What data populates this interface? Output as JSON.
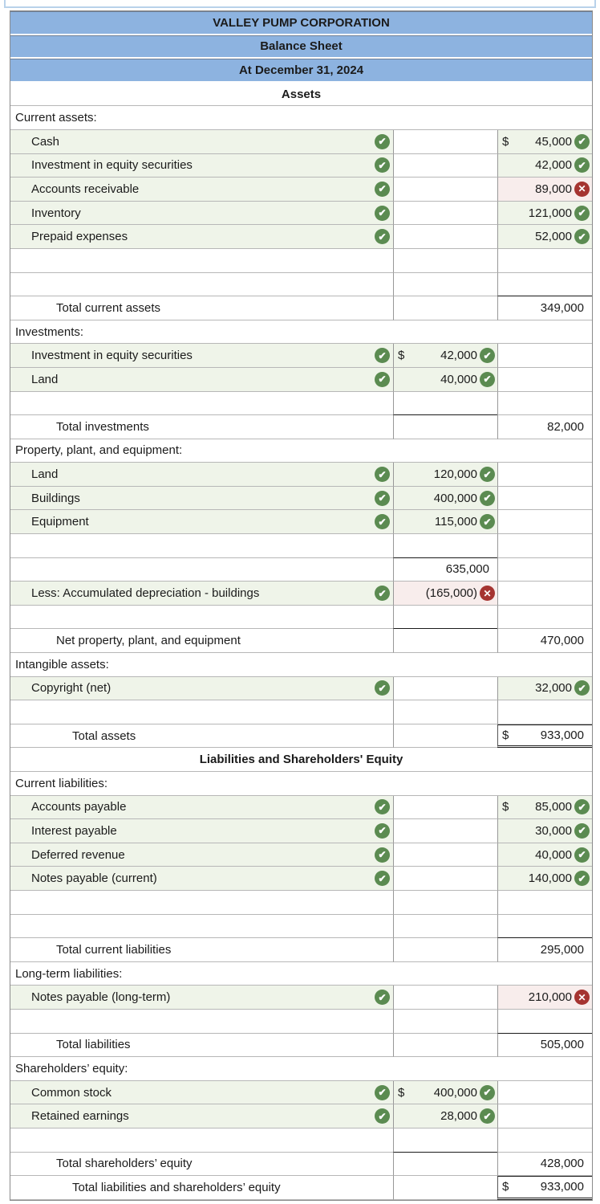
{
  "colors": {
    "header_blue": "#8db3e0",
    "correct_green_bg": "#eff4e9",
    "wrong_pink_bg": "#f8edec",
    "check_icon_green": "#5b8b51",
    "cross_icon_red": "#a53431",
    "grid_line": "#b7b7b7",
    "sum_line": "#1a1a1a"
  },
  "icons": {
    "check": "✔",
    "cross": "✕"
  },
  "table": {
    "rows": [
      {
        "type": "title",
        "text": "VALLEY PUMP CORPORATION"
      },
      {
        "type": "title",
        "text": "Balance Sheet"
      },
      {
        "type": "title",
        "text": "At December 31, 2024"
      },
      {
        "type": "center",
        "text": "Assets"
      },
      {
        "type": "section",
        "text": "Current assets:"
      },
      {
        "type": "item",
        "label": "Cash",
        "check": true,
        "right": {
          "dollar": "$",
          "value": "45,000",
          "icon": "check",
          "bg": "green"
        }
      },
      {
        "type": "item",
        "label": "Investment in equity securities",
        "check": true,
        "right": {
          "value": "42,000",
          "icon": "check",
          "bg": "green"
        }
      },
      {
        "type": "item",
        "label": "Accounts receivable",
        "check": true,
        "right": {
          "value": "89,000",
          "icon": "cross",
          "bg": "pink"
        }
      },
      {
        "type": "item",
        "label": "Inventory",
        "check": true,
        "right": {
          "value": "121,000",
          "icon": "check",
          "bg": "green"
        }
      },
      {
        "type": "item",
        "label": "Prepaid expenses",
        "check": true,
        "right": {
          "value": "52,000",
          "icon": "check",
          "bg": "green"
        }
      },
      {
        "type": "empty"
      },
      {
        "type": "empty",
        "right_sum": true
      },
      {
        "type": "total",
        "indent": 2,
        "label": "Total current assets",
        "right": {
          "value": "349,000"
        }
      },
      {
        "type": "section",
        "text": "Investments:"
      },
      {
        "type": "item",
        "label": "Investment in equity securities",
        "check": true,
        "mid": {
          "dollar": "$",
          "value": "42,000",
          "icon": "check",
          "bg": "green"
        }
      },
      {
        "type": "item",
        "label": "Land",
        "check": true,
        "mid": {
          "value": "40,000",
          "icon": "check",
          "bg": "green"
        }
      },
      {
        "type": "empty",
        "mid_sum": true
      },
      {
        "type": "total",
        "indent": 2,
        "label": "Total investments",
        "right": {
          "value": "82,000"
        }
      },
      {
        "type": "section",
        "text": "Property, plant, and equipment:"
      },
      {
        "type": "item",
        "label": "Land",
        "check": true,
        "mid": {
          "value": "120,000",
          "icon": "check",
          "bg": "green"
        }
      },
      {
        "type": "item",
        "label": "Buildings",
        "check": true,
        "mid": {
          "value": "400,000",
          "icon": "check",
          "bg": "green"
        }
      },
      {
        "type": "item",
        "label": "Equipment",
        "check": true,
        "mid": {
          "value": "115,000",
          "icon": "check",
          "bg": "green"
        }
      },
      {
        "type": "empty",
        "mid_sum": true
      },
      {
        "type": "plain",
        "mid": {
          "value": "635,000"
        }
      },
      {
        "type": "item",
        "label": "Less: Accumulated depreciation - buildings",
        "check": true,
        "mid": {
          "value": "(165,000)",
          "icon": "cross",
          "bg": "pink"
        }
      },
      {
        "type": "empty",
        "mid_sum": true
      },
      {
        "type": "total",
        "indent": 2,
        "label": "Net property, plant, and equipment",
        "right": {
          "value": "470,000"
        }
      },
      {
        "type": "section",
        "text": "Intangible assets:"
      },
      {
        "type": "item",
        "label": "Copyright (net)",
        "check": true,
        "right": {
          "value": "32,000",
          "icon": "check",
          "bg": "green"
        }
      },
      {
        "type": "empty"
      },
      {
        "type": "total",
        "indent": 3,
        "label": "Total assets",
        "right": {
          "dollar": "$",
          "value": "933,000",
          "grand": true
        }
      },
      {
        "type": "center",
        "text": "Liabilities and Shareholders' Equity"
      },
      {
        "type": "section",
        "text": "Current liabilities:"
      },
      {
        "type": "item",
        "label": "Accounts payable",
        "check": true,
        "right": {
          "dollar": "$",
          "value": "85,000",
          "icon": "check",
          "bg": "green"
        }
      },
      {
        "type": "item",
        "label": "Interest payable",
        "check": true,
        "right": {
          "value": "30,000",
          "icon": "check",
          "bg": "green"
        }
      },
      {
        "type": "item",
        "label": "Deferred revenue",
        "check": true,
        "right": {
          "value": "40,000",
          "icon": "check",
          "bg": "green"
        }
      },
      {
        "type": "item",
        "label": "Notes payable (current)",
        "check": true,
        "right": {
          "value": "140,000",
          "icon": "check",
          "bg": "green"
        }
      },
      {
        "type": "empty"
      },
      {
        "type": "empty",
        "right_sum": true
      },
      {
        "type": "total",
        "indent": 2,
        "label": "Total current liabilities",
        "right": {
          "value": "295,000"
        }
      },
      {
        "type": "section",
        "text": "Long-term liabilities:"
      },
      {
        "type": "item",
        "label": "Notes payable (long-term)",
        "check": true,
        "right": {
          "value": "210,000",
          "icon": "cross",
          "bg": "pink"
        }
      },
      {
        "type": "empty",
        "right_sum": true
      },
      {
        "type": "total",
        "indent": 2,
        "label": "Total liabilities",
        "right": {
          "value": "505,000"
        }
      },
      {
        "type": "section",
        "text": "Shareholders’ equity:"
      },
      {
        "type": "item",
        "label": "Common stock",
        "check": true,
        "mid": {
          "dollar": "$",
          "value": "400,000",
          "icon": "check",
          "bg": "green"
        }
      },
      {
        "type": "item",
        "label": "Retained earnings",
        "check": true,
        "mid": {
          "value": "28,000",
          "icon": "check",
          "bg": "green"
        }
      },
      {
        "type": "empty",
        "mid_sum": true
      },
      {
        "type": "total",
        "indent": 2,
        "label": "Total shareholders’ equity",
        "right": {
          "value": "428,000"
        }
      },
      {
        "type": "total",
        "indent": 3,
        "label": "Total liabilities and shareholders’ equity",
        "right": {
          "dollar": "$",
          "value": "933,000",
          "grand": true
        }
      }
    ]
  }
}
